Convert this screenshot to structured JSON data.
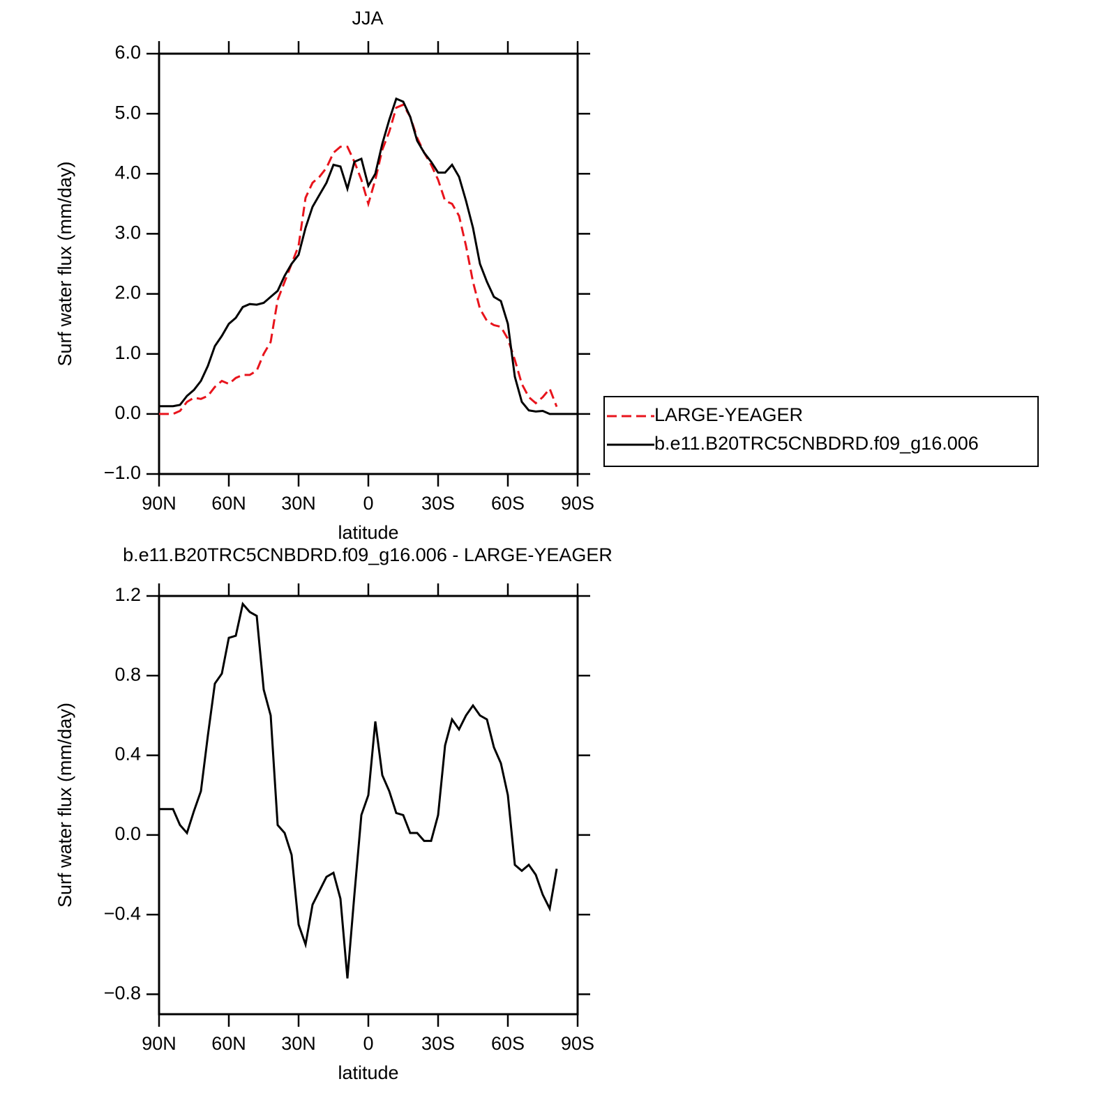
{
  "chart_data": [
    {
      "type": "line",
      "title": "JJA",
      "xlabel": "latitude",
      "ylabel": "Surf water flux (mm/day)",
      "x": [
        90,
        87,
        84,
        81,
        78,
        75,
        72,
        69,
        66,
        63,
        60,
        57,
        54,
        51,
        48,
        45,
        42,
        39,
        36,
        33,
        30,
        27,
        24,
        21,
        18,
        15,
        12,
        9,
        6,
        3,
        0,
        -3,
        -6,
        -9,
        -12,
        -15,
        -18,
        -21,
        -24,
        -27,
        -30,
        -33,
        -36,
        -39,
        -42,
        -45,
        -48,
        -51,
        -54,
        -57,
        -60,
        -63,
        -66,
        -69,
        -72,
        -75,
        -78,
        -81,
        -84,
        -87,
        -90
      ],
      "xlim": [
        90,
        -90
      ],
      "xticks": [
        {
          "value": 90,
          "label": "90N"
        },
        {
          "value": 60,
          "label": "60N"
        },
        {
          "value": 30,
          "label": "30N"
        },
        0,
        {
          "value": -30,
          "label": "30S"
        },
        {
          "value": -60,
          "label": "60S"
        },
        {
          "value": -90,
          "label": "90S"
        }
      ],
      "ylim": [
        -1,
        6
      ],
      "yticks": [
        {
          "value": 6,
          "label": "6.0"
        },
        {
          "value": 5,
          "label": "5.0"
        },
        {
          "value": 4,
          "label": "4.0"
        },
        {
          "value": 3,
          "label": "3.0"
        },
        {
          "value": 2,
          "label": "2.0"
        },
        {
          "value": 1,
          "label": "1.0"
        },
        {
          "value": 0,
          "label": "0.0"
        },
        {
          "value": -1,
          "label": "−1.0"
        }
      ],
      "legend": "right",
      "series": [
        {
          "name": "LARGE-YEAGER",
          "color": "#e8141c",
          "dash": "dashed",
          "values": [
            0,
            0,
            0,
            0.05,
            0.2,
            0.27,
            0.25,
            0.3,
            0.45,
            0.55,
            0.5,
            0.6,
            0.65,
            0.65,
            0.72,
            1.0,
            1.2,
            1.9,
            2.2,
            2.5,
            2.8,
            3.6,
            3.85,
            3.95,
            4.1,
            4.35,
            4.45,
            4.45,
            4.2,
            3.9,
            3.5,
            3.9,
            4.4,
            4.7,
            5.1,
            5.15,
            4.95,
            4.6,
            4.35,
            4.15,
            3.9,
            3.55,
            3.5,
            3.3,
            2.8,
            2.2,
            1.75,
            1.55,
            1.48,
            1.45,
            1.25,
            0.9,
            0.5,
            0.28,
            0.18,
            0.28,
            0.42,
            0.12,
            null,
            null,
            null
          ]
        },
        {
          "name": "b.e11.B20TRC5CNBDRD.f09_g16.006",
          "color": "#000000",
          "dash": "solid",
          "values": [
            0.13,
            0.13,
            0.13,
            0.15,
            0.3,
            0.4,
            0.55,
            0.8,
            1.13,
            1.3,
            1.5,
            1.6,
            1.78,
            1.83,
            1.82,
            1.85,
            1.95,
            2.05,
            2.3,
            2.5,
            2.65,
            3.1,
            3.45,
            3.65,
            3.85,
            4.15,
            4.12,
            3.75,
            4.2,
            4.25,
            3.8,
            4.0,
            4.5,
            4.9,
            5.25,
            5.2,
            4.95,
            4.55,
            4.35,
            4.2,
            4.02,
            4.02,
            4.15,
            3.95,
            3.55,
            3.1,
            2.5,
            2.2,
            1.95,
            1.88,
            1.5,
            0.62,
            0.2,
            0.06,
            0.04,
            0.05,
            0,
            0,
            0,
            0,
            0
          ]
        }
      ]
    },
    {
      "type": "line",
      "title": "b.e11.B20TRC5CNBDRD.f09_g16.006 - LARGE-YEAGER",
      "xlabel": "latitude",
      "ylabel": "Surf water flux (mm/day)",
      "x": [
        90,
        87,
        84,
        81,
        78,
        75,
        72,
        69,
        66,
        63,
        60,
        57,
        54,
        51,
        48,
        45,
        42,
        39,
        36,
        33,
        30,
        27,
        24,
        21,
        18,
        15,
        12,
        9,
        6,
        3,
        0,
        -3,
        -6,
        -9,
        -12,
        -15,
        -18,
        -21,
        -24,
        -27,
        -30,
        -33,
        -36,
        -39,
        -42,
        -45,
        -48,
        -51,
        -54,
        -57,
        -60,
        -63,
        -66,
        -69,
        -72,
        -75,
        -78,
        -81,
        -84,
        -87,
        -90
      ],
      "xlim": [
        90,
        -90
      ],
      "xticks": [
        {
          "value": 90,
          "label": "90N"
        },
        {
          "value": 60,
          "label": "60N"
        },
        {
          "value": 30,
          "label": "30N"
        },
        0,
        {
          "value": -30,
          "label": "30S"
        },
        {
          "value": -60,
          "label": "60S"
        },
        {
          "value": -90,
          "label": "90S"
        }
      ],
      "ylim": [
        -0.9,
        1.2
      ],
      "yticks": [
        1.2,
        0.8,
        0.4,
        {
          "value": 0,
          "label": "0.0"
        },
        {
          "value": -0.4,
          "label": "−0.4"
        },
        {
          "value": -0.8,
          "label": "−0.8"
        }
      ],
      "color": "#000000",
      "values": [
        0.13,
        0.13,
        0.13,
        0.05,
        0.01,
        0.12,
        0.22,
        0.5,
        0.76,
        0.81,
        0.99,
        1.0,
        1.16,
        1.12,
        1.1,
        0.73,
        0.6,
        0.05,
        0.01,
        -0.1,
        -0.45,
        -0.55,
        -0.35,
        -0.28,
        -0.21,
        -0.19,
        -0.32,
        -0.72,
        -0.3,
        0.1,
        0.2,
        0.57,
        0.3,
        0.22,
        0.11,
        0.1,
        0.01,
        0.01,
        -0.03,
        -0.03,
        0.1,
        0.45,
        0.58,
        0.53,
        0.6,
        0.65,
        0.6,
        0.58,
        0.44,
        0.36,
        0.2,
        -0.15,
        -0.18,
        -0.15,
        -0.2,
        -0.3,
        -0.37,
        -0.17,
        null,
        null,
        null
      ]
    }
  ]
}
